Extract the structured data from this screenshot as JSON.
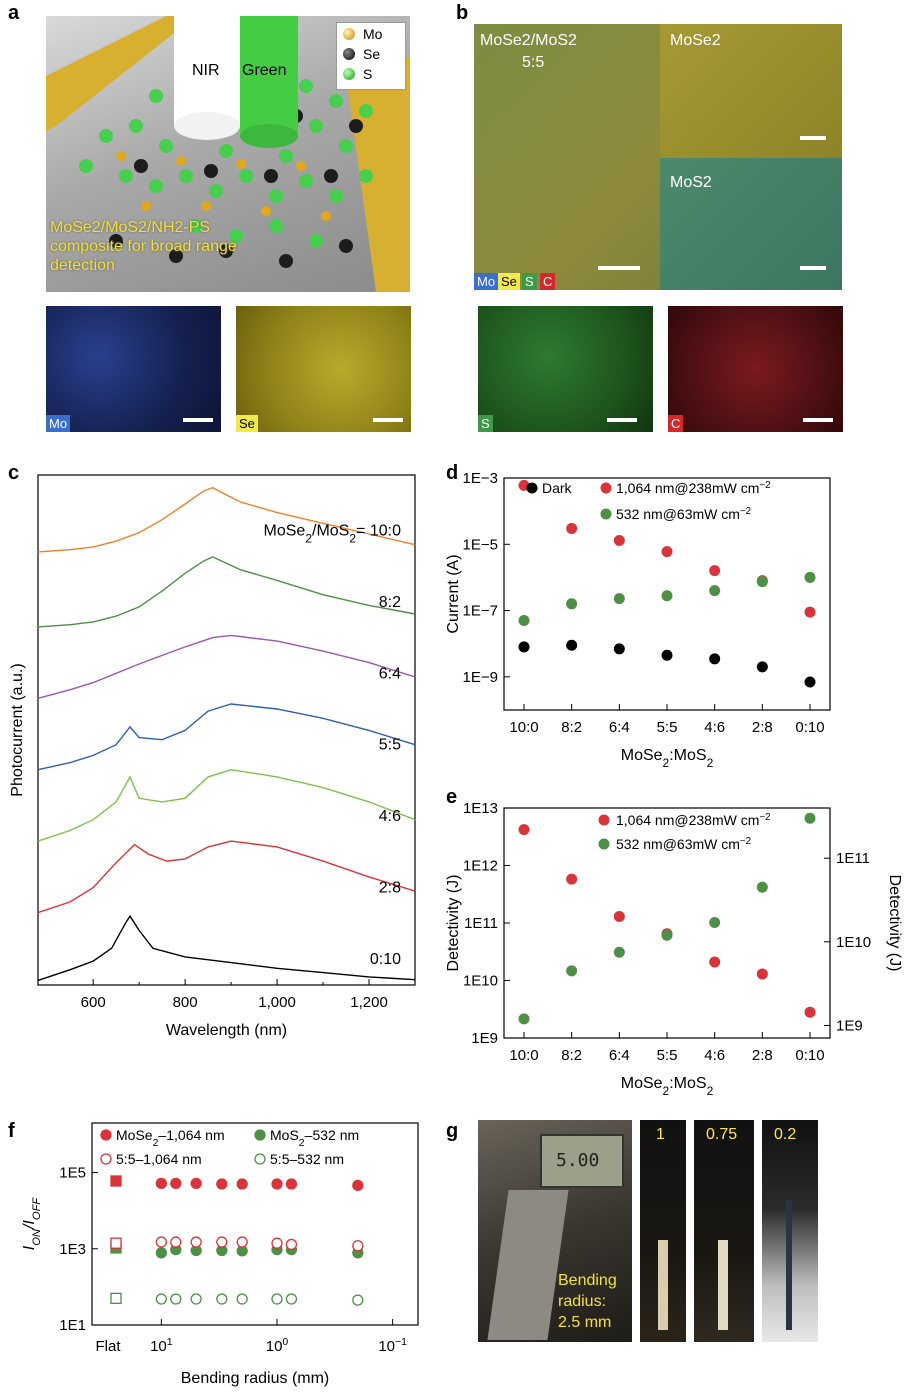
{
  "panels": {
    "a": {
      "label": "a",
      "beam_labels": [
        "NIR",
        "Green"
      ],
      "legend": [
        "Mo",
        "Se",
        "S"
      ],
      "caption_lines": [
        "MoSe2/MoS2/NH2-PS",
        "composite for broad range",
        "detection"
      ],
      "maps": [
        "Mo",
        "Se"
      ]
    },
    "b": {
      "label": "b",
      "titles": {
        "main": "MoSe2/MoS2",
        "main_ratio": "5:5",
        "top_right": "MoSe2",
        "bottom_right": "MoS2"
      },
      "element_chips": [
        "Mo",
        "Se",
        "S",
        "C"
      ],
      "maps": [
        "S",
        "C"
      ]
    },
    "g": {
      "label": "g",
      "photo_labels": [
        "1",
        "0.75",
        "0.2"
      ],
      "bending_text": [
        "Bending",
        "radius:",
        "2.5 mm"
      ],
      "caliper_reading": "5.00"
    }
  },
  "colors": {
    "mo": "#3a5fc8",
    "se": "#e8df3a",
    "s": "#3f9a48",
    "c": "#d6282b",
    "red": "#d8343a",
    "green": "#4e8f46",
    "black": "#000000",
    "orange": "#f07f2a",
    "purple": "#9a58b0",
    "blue": "#2e5fb0",
    "lightgreen": "#7fc04a"
  },
  "chart_data": [
    {
      "panel": "c",
      "label": "c",
      "type": "line",
      "xlabel": "Wavelength (nm)",
      "ylabel": "Photocurrent (a.u.)",
      "xlim": [
        480,
        1300
      ],
      "xticks": [
        600,
        800,
        1000,
        1200
      ],
      "xtick_labels": [
        "600",
        "800",
        "1,000",
        "1,200"
      ],
      "annotation_prefix": "MoSe2/MoS2= ",
      "series": [
        {
          "name": "10:0",
          "color": "#f07f2a",
          "x": [
            480,
            550,
            600,
            650,
            700,
            750,
            800,
            840,
            860,
            880,
            920,
            1000,
            1100,
            1200,
            1300
          ],
          "y": [
            0.05,
            0.08,
            0.12,
            0.2,
            0.32,
            0.5,
            0.72,
            0.9,
            0.95,
            0.88,
            0.75,
            0.6,
            0.45,
            0.3,
            0.15
          ]
        },
        {
          "name": "8:2",
          "color": "#4e8f46",
          "x": [
            480,
            550,
            600,
            650,
            700,
            750,
            800,
            840,
            860,
            880,
            920,
            1000,
            1100,
            1200,
            1300
          ],
          "y": [
            0.0,
            0.03,
            0.07,
            0.15,
            0.28,
            0.5,
            0.75,
            0.92,
            0.98,
            0.92,
            0.8,
            0.65,
            0.45,
            0.3,
            0.18
          ]
        },
        {
          "name": "6:4",
          "color": "#9a58b0",
          "x": [
            480,
            550,
            600,
            650,
            700,
            750,
            800,
            860,
            900,
            1000,
            1100,
            1200,
            1300
          ],
          "y": [
            0.0,
            0.12,
            0.22,
            0.35,
            0.48,
            0.6,
            0.72,
            0.85,
            0.88,
            0.8,
            0.66,
            0.5,
            0.3
          ]
        },
        {
          "name": "5:5",
          "color": "#2e5fb0",
          "x": [
            480,
            550,
            600,
            650,
            680,
            700,
            750,
            800,
            850,
            900,
            1000,
            1100,
            1200,
            1300
          ],
          "y": [
            0.0,
            0.1,
            0.2,
            0.35,
            0.6,
            0.45,
            0.42,
            0.55,
            0.82,
            0.92,
            0.85,
            0.72,
            0.55,
            0.35
          ]
        },
        {
          "name": "4:6",
          "color": "#7fc04a",
          "x": [
            480,
            550,
            600,
            650,
            680,
            700,
            750,
            800,
            850,
            900,
            1000,
            1100,
            1200,
            1300
          ],
          "y": [
            0.0,
            0.15,
            0.3,
            0.55,
            0.9,
            0.6,
            0.55,
            0.6,
            0.9,
            1.0,
            0.9,
            0.75,
            0.55,
            0.3
          ]
        },
        {
          "name": "2:8",
          "color": "#d8343a",
          "x": [
            480,
            550,
            600,
            650,
            690,
            720,
            760,
            800,
            850,
            900,
            1000,
            1100,
            1200,
            1300
          ],
          "y": [
            0.0,
            0.15,
            0.35,
            0.7,
            0.95,
            0.82,
            0.72,
            0.75,
            0.92,
            1.0,
            0.92,
            0.72,
            0.5,
            0.3
          ]
        },
        {
          "name": "0:10",
          "color": "#000000",
          "x": [
            480,
            550,
            600,
            640,
            670,
            680,
            700,
            730,
            800,
            900,
            1000,
            1100,
            1200,
            1300
          ],
          "y": [
            0.05,
            0.2,
            0.32,
            0.5,
            0.85,
            0.95,
            0.75,
            0.5,
            0.38,
            0.3,
            0.22,
            0.16,
            0.1,
            0.06
          ]
        }
      ]
    },
    {
      "panel": "d",
      "label": "d",
      "type": "scatter",
      "xlabel": "MoSe2:MoS2",
      "ylabel": "Current (A)",
      "log_y": true,
      "ylim_exp": [
        -10,
        -3
      ],
      "ytick_exps": [
        -3,
        -5,
        -7,
        -9
      ],
      "ytick_labels": [
        "1E−3",
        "1E−5",
        "1E−7",
        "1E−9"
      ],
      "categories": [
        "10:0",
        "8:2",
        "6:4",
        "5:5",
        "4:6",
        "2:8",
        "0:10"
      ],
      "series": [
        {
          "name": "Dark",
          "color": "#000000",
          "values": [
            8e-09,
            9e-09,
            7e-09,
            4.5e-09,
            3.5e-09,
            2e-09,
            7e-10
          ]
        },
        {
          "name": "1,064 nm@238mW cm−2",
          "color": "#d8343a",
          "values": [
            0.0006,
            3e-05,
            1.3e-05,
            6e-06,
            1.6e-06,
            8e-07,
            9e-08
          ]
        },
        {
          "name": "532 nm@63mW cm−2",
          "color": "#4e8f46",
          "values": [
            5e-08,
            1.6e-07,
            2.3e-07,
            2.8e-07,
            4e-07,
            7.5e-07,
            1e-06
          ]
        }
      ]
    },
    {
      "panel": "e",
      "label": "e",
      "type": "scatter",
      "xlabel": "MoSe2:MoS2",
      "ylabel": "Detectivity (J)",
      "ylabel_right": "Detectivity (J)",
      "log_y": true,
      "ylim_exp": [
        9,
        13
      ],
      "ytick_exps": [
        13,
        12,
        11,
        10,
        9
      ],
      "ytick_labels": [
        "1E13",
        "1E12",
        "1E11",
        "1E10",
        "1E9"
      ],
      "y2lim_exp": [
        8.85,
        11.6
      ],
      "y2tick_exps": [
        11,
        10,
        9
      ],
      "y2tick_labels": [
        "1E11",
        "1E10",
        "1E9"
      ],
      "categories": [
        "10:0",
        "8:2",
        "6:4",
        "5:5",
        "4:6",
        "2:8",
        "0:10"
      ],
      "series": [
        {
          "name": "1,064 nm@238mW cm−2",
          "color": "#d8343a",
          "axis": "left",
          "values": [
            4200000000000.0,
            580000000000.0,
            130000000000.0,
            65000000000.0,
            21000000000.0,
            13000000000.0,
            2800000000.0
          ]
        },
        {
          "name": "532 nm@63mW cm−2",
          "color": "#4e8f46",
          "axis": "right",
          "values": [
            1200000000.0,
            4500000000.0,
            7500000000.0,
            12000000000.0,
            17000000000.0,
            45000000000.0,
            300000000000.0
          ]
        }
      ]
    },
    {
      "panel": "f",
      "label": "f",
      "type": "scatter",
      "xlabel": "Bending radius (mm)",
      "ylabel": "ION/IOFF",
      "log_x": true,
      "log_y": true,
      "ylim_exp": [
        1,
        6.3
      ],
      "ytick_exps": [
        5,
        3,
        1
      ],
      "ytick_labels": [
        "1E5",
        "1E3",
        "1E1"
      ],
      "xtick_labels": [
        "Flat",
        "10",
        "10",
        "10"
      ],
      "xtick_sup": [
        "",
        "1",
        "0",
        "−1"
      ],
      "x_flat_label": "Flat",
      "radii": [
        10,
        7.5,
        5,
        3,
        2,
        1,
        0.75,
        0.2
      ],
      "series": [
        {
          "name": "MoSe2–1,064 nm",
          "color": "#d8343a",
          "filled": true,
          "flat": 60000.0,
          "values": [
            52000.0,
            52000.0,
            52000.0,
            50000.0,
            50000.0,
            50000.0,
            50000.0,
            46000.0
          ]
        },
        {
          "name": "MoS2–532 nm",
          "color": "#4e8f46",
          "filled": true,
          "flat": 1050.0,
          "values": [
            780.0,
            950.0,
            900.0,
            900.0,
            880.0,
            950.0,
            950.0,
            780.0
          ]
        },
        {
          "name": "5:5–1,064 nm",
          "color": "#d8343a",
          "filled": false,
          "flat": 1400.0,
          "values": [
            1500.0,
            1500.0,
            1500.0,
            1500.0,
            1500.0,
            1400.0,
            1300.0,
            1200.0
          ]
        },
        {
          "name": "5:5–532 nm",
          "color": "#4e8f46",
          "filled": false,
          "flat": 50,
          "values": [
            48,
            48,
            48,
            48,
            48,
            48,
            48,
            45
          ]
        }
      ]
    }
  ]
}
